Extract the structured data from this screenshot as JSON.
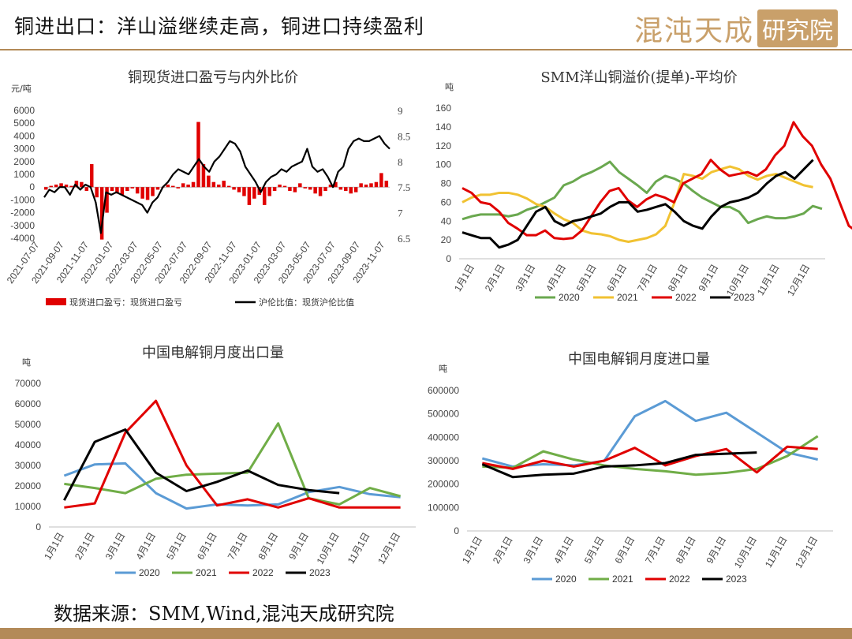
{
  "header": {
    "title": "铜进出口：洋山溢继续走高，铜进口持续盈利",
    "brand_main": "混沌天成",
    "brand_box": "研究院"
  },
  "footer": {
    "source": "数据来源：SMM,Wind,混沌天成研究院"
  },
  "chart_data": [
    {
      "id": "import-profit",
      "type": "bar+line",
      "title": "铜现货进口盈亏与内外比价",
      "ylabel": "元/吨",
      "ylim": [
        -4000,
        6000
      ],
      "y2lim": [
        6.5,
        9
      ],
      "yticks": [
        "6000",
        "5000",
        "4000",
        "3000",
        "2000",
        "1000",
        "0",
        "-1000",
        "-2000",
        "-3000",
        "-4000"
      ],
      "y2ticks": [
        "9",
        "8.5",
        "8",
        "7.5",
        "7",
        "6.5"
      ],
      "xticks": [
        "2021-07-07",
        "2021-09-07",
        "2021-11-07",
        "2022-01-07",
        "2022-03-07",
        "2022-05-07",
        "2022-07-07",
        "2022-09-07",
        "2022-11-07",
        "2023-01-07",
        "2023-03-07",
        "2023-05-07",
        "2023-07-07",
        "2023-09-07",
        "2023-11-07"
      ],
      "bar_color": "#e00000",
      "line_color": "#000000",
      "legend": [
        "现货进口盈亏：现货进口盈亏",
        "沪伦比值：现货沪伦比值"
      ],
      "profit": [
        -200,
        100,
        200,
        300,
        200,
        100,
        500,
        400,
        -300,
        1800,
        -800,
        -4100,
        -2000,
        -300,
        -500,
        -600,
        -300,
        -100,
        -500,
        -900,
        -1000,
        -700,
        -200,
        0,
        200,
        100,
        -100,
        300,
        200,
        400,
        5100,
        1800,
        900,
        400,
        200,
        500,
        100,
        -200,
        -400,
        -700,
        -1400,
        -900,
        -600,
        -1400,
        -700,
        -300,
        200,
        100,
        -300,
        -400,
        300,
        -100,
        -200,
        -500,
        -700,
        -300,
        200,
        400,
        -200,
        -300,
        -500,
        -400,
        300,
        200,
        300,
        400,
        1100,
        500
      ],
      "ratio": [
        7.3,
        7.45,
        7.4,
        7.5,
        7.5,
        7.35,
        7.55,
        7.45,
        7.55,
        7.5,
        7.2,
        6.6,
        7.4,
        7.35,
        7.4,
        7.35,
        7.3,
        7.25,
        7.2,
        7.15,
        7.0,
        7.2,
        7.3,
        7.5,
        7.6,
        7.75,
        7.85,
        7.8,
        7.75,
        7.9,
        8.05,
        7.9,
        7.8,
        8.0,
        8.1,
        8.25,
        8.4,
        8.35,
        8.2,
        7.9,
        7.75,
        7.6,
        7.4,
        7.6,
        7.7,
        7.75,
        7.85,
        7.8,
        7.9,
        7.95,
        8.0,
        8.25,
        7.9,
        7.8,
        7.85,
        7.7,
        7.5,
        7.8,
        7.9,
        8.25,
        8.4,
        8.45,
        8.4,
        8.4,
        8.45,
        8.5,
        8.35,
        8.25
      ]
    },
    {
      "id": "yangshan-premium",
      "type": "line",
      "title": "SMM洋山铜溢价(提单)-平均价",
      "ylabel": "吨",
      "ylim": [
        0,
        160
      ],
      "yticks": [
        "160",
        "140",
        "120",
        "100",
        "80",
        "60",
        "40",
        "20",
        "0"
      ],
      "xticks": [
        "1月1日",
        "2月1日",
        "3月1日",
        "4月1日",
        "5月1日",
        "6月1日",
        "7月1日",
        "8月1日",
        "9月1日",
        "10月1日",
        "11月1日",
        "12月1日"
      ],
      "series": [
        {
          "name": "2020",
          "color": "#6aa84f",
          "values": [
            42,
            45,
            47,
            47,
            47,
            45,
            47,
            52,
            55,
            60,
            65,
            78,
            82,
            88,
            92,
            97,
            103,
            92,
            85,
            78,
            70,
            82,
            88,
            85,
            80,
            72,
            65,
            60,
            55,
            55,
            50,
            38,
            42,
            45,
            43,
            43,
            45,
            48,
            56,
            53
          ]
        },
        {
          "name": "2021",
          "color": "#f1c232",
          "values": [
            60,
            65,
            68,
            68,
            70,
            70,
            68,
            64,
            58,
            55,
            48,
            42,
            38,
            30,
            27,
            26,
            24,
            20,
            18,
            20,
            22,
            26,
            35,
            60,
            90,
            88,
            85,
            92,
            95,
            98,
            95,
            88,
            84,
            88,
            90,
            86,
            82,
            78,
            76
          ]
        },
        {
          "name": "2022",
          "color": "#e00000",
          "values": [
            75,
            70,
            60,
            58,
            50,
            38,
            32,
            25,
            25,
            30,
            22,
            21,
            22,
            30,
            45,
            60,
            72,
            75,
            62,
            55,
            63,
            68,
            65,
            60,
            80,
            85,
            90,
            105,
            95,
            88,
            90,
            92,
            88,
            95,
            110,
            120,
            145,
            130,
            120,
            100,
            85,
            60,
            35,
            28
          ]
        },
        {
          "name": "2023",
          "color": "#000000",
          "values": [
            28,
            25,
            22,
            22,
            12,
            15,
            20,
            35,
            50,
            55,
            40,
            35,
            40,
            42,
            45,
            48,
            55,
            60,
            60,
            50,
            52,
            55,
            58,
            50,
            40,
            35,
            32,
            45,
            55,
            60,
            62,
            65,
            70,
            80,
            88,
            92,
            85,
            95,
            105
          ]
        }
      ]
    },
    {
      "id": "cathode-export",
      "type": "line",
      "title": "中国电解铜月度出口量",
      "ylabel": "吨",
      "ylim": [
        0,
        70000
      ],
      "yticks": [
        "70000",
        "60000",
        "50000",
        "40000",
        "30000",
        "20000",
        "10000",
        "0"
      ],
      "xticks": [
        "1月1日",
        "2月1日",
        "3月1日",
        "4月1日",
        "5月1日",
        "6月1日",
        "7月1日",
        "8月1日",
        "9月1日",
        "10月1日",
        "11月1日",
        "12月1日"
      ],
      "series": [
        {
          "name": "2020",
          "color": "#5b9bd5",
          "values": [
            25000,
            30500,
            31000,
            16500,
            9000,
            11000,
            10500,
            11000,
            17000,
            19500,
            16000,
            14500
          ]
        },
        {
          "name": "2021",
          "color": "#70ad47",
          "values": [
            21000,
            19000,
            16500,
            23500,
            25500,
            26000,
            26500,
            50500,
            14000,
            11000,
            19000,
            15000
          ]
        },
        {
          "name": "2022",
          "color": "#e00000",
          "values": [
            9500,
            11500,
            46000,
            61500,
            30000,
            10500,
            13500,
            9500,
            14000,
            9500,
            9500,
            9500
          ]
        },
        {
          "name": "2023",
          "color": "#000000",
          "values": [
            13000,
            41500,
            47500,
            26500,
            17500,
            22000,
            27500,
            20500,
            18000,
            16500
          ]
        }
      ]
    },
    {
      "id": "cathode-import",
      "type": "line",
      "title": "中国电解铜月度进口量",
      "ylabel": "吨",
      "ylim": [
        0,
        600000
      ],
      "yticks": [
        "600000",
        "500000",
        "400000",
        "300000",
        "200000",
        "100000",
        "0"
      ],
      "xticks": [
        "1月1日",
        "2月1日",
        "3月1日",
        "4月1日",
        "5月1日",
        "6月1日",
        "7月1日",
        "8月1日",
        "9月1日",
        "10月1日",
        "11月1日",
        "12月1日"
      ],
      "series": [
        {
          "name": "2020",
          "color": "#5b9bd5",
          "values": [
            310000,
            275000,
            285000,
            280000,
            300000,
            490000,
            555000,
            470000,
            505000,
            420000,
            335000,
            305000
          ]
        },
        {
          "name": "2021",
          "color": "#70ad47",
          "values": [
            275000,
            270000,
            340000,
            305000,
            280000,
            265000,
            255000,
            240000,
            248000,
            265000,
            320000,
            405000
          ]
        },
        {
          "name": "2022",
          "color": "#e00000",
          "values": [
            290000,
            265000,
            300000,
            275000,
            300000,
            355000,
            280000,
            320000,
            350000,
            250000,
            360000,
            350000
          ]
        },
        {
          "name": "2023",
          "color": "#000000",
          "values": [
            285000,
            230000,
            240000,
            245000,
            275000,
            280000,
            290000,
            325000,
            330000,
            335000
          ]
        }
      ]
    }
  ]
}
